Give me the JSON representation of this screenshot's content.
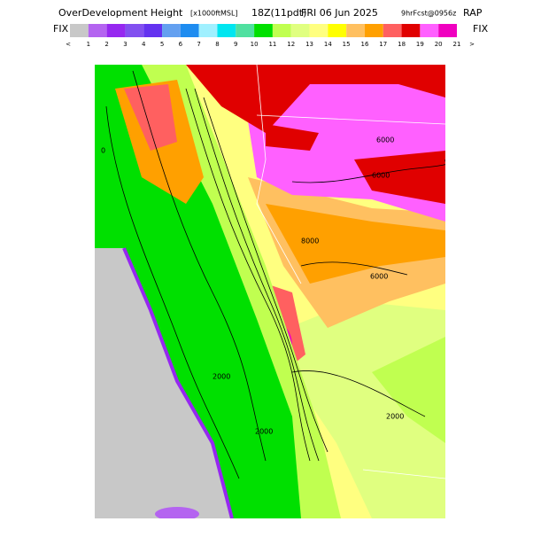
{
  "header": {
    "title": "OverDevelopment Height",
    "units": "[x1000ftMSL]",
    "valid_time": "18Z(11pdt)",
    "date": "FRI 06 Jun 2025",
    "forecast": "9hrFcst@0956z",
    "model": "RAP"
  },
  "colorbar": {
    "left_label": "FIX",
    "right_label": "FIX",
    "labels": [
      "<",
      "1",
      "2",
      "3",
      "4",
      "5",
      "6",
      "7",
      "8",
      "9",
      "10",
      "11",
      "12",
      "13",
      "14",
      "15",
      "16",
      "17",
      "18",
      "19",
      "20",
      "21",
      ">"
    ],
    "colors": [
      "#c8c8c8",
      "#b464f0",
      "#9628f0",
      "#8250f0",
      "#6432f0",
      "#64a0f0",
      "#1e8cf0",
      "#a0f0ff",
      "#00e6f0",
      "#50e0a0",
      "#00e000",
      "#c0ff50",
      "#e0ff80",
      "#ffff80",
      "#ffff00",
      "#ffc060",
      "#ffa000",
      "#ff6060",
      "#e00000",
      "#ff60ff",
      "#f000c0"
    ]
  },
  "map_labels": [
    "6000",
    "6000",
    "8000",
    "6000",
    "2000",
    "2000",
    "2000",
    "0"
  ]
}
